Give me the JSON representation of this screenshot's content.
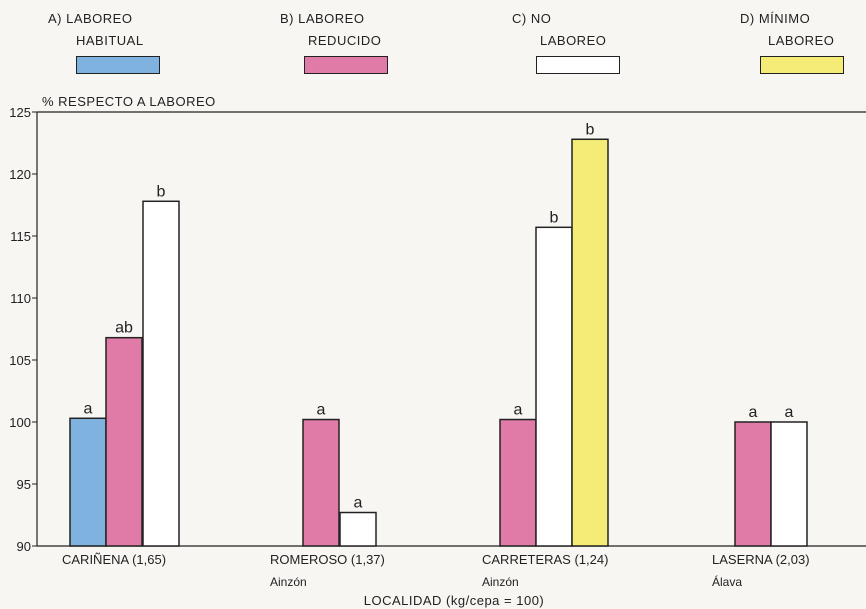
{
  "legend": {
    "a": {
      "line1": "A)  LABOREO",
      "line2": "HABITUAL",
      "color": "#7fb2de"
    },
    "b": {
      "line1": "B)  LABOREO",
      "line2": "REDUCIDO",
      "color": "#e07aa6"
    },
    "c": {
      "line1": "C)  NO",
      "line2": "LABOREO",
      "color": "#ffffff"
    },
    "d": {
      "line1": "D)  MÍNIMO",
      "line2": "LABOREO",
      "color": "#f5ec78"
    }
  },
  "chart_data": {
    "type": "bar",
    "ylabel": "% RESPECTO A LABOREO",
    "xlabel": "LOCALIDAD (kg/cepa = 100)",
    "ylim": [
      90,
      125
    ],
    "yticks": [
      90,
      95,
      100,
      105,
      110,
      115,
      120,
      125
    ],
    "categories": [
      {
        "label": "CARIÑENA (1,65)",
        "sublabel": ""
      },
      {
        "label": "ROMEROSO (1,37)",
        "sublabel": "Ainzón"
      },
      {
        "label": "CARRETERAS (1,24)",
        "sublabel": "Ainzón"
      },
      {
        "label": "LASERNA (2,03)",
        "sublabel": "Álava"
      }
    ],
    "bars": [
      {
        "category": 0,
        "series": "A",
        "value": 100.3,
        "sig": "a"
      },
      {
        "category": 0,
        "series": "B",
        "value": 106.8,
        "sig": "ab"
      },
      {
        "category": 0,
        "series": "C",
        "value": 117.8,
        "sig": "b"
      },
      {
        "category": 1,
        "series": "B",
        "value": 100.2,
        "sig": "a"
      },
      {
        "category": 1,
        "series": "C",
        "value": 92.7,
        "sig": "a"
      },
      {
        "category": 2,
        "series": "B",
        "value": 100.2,
        "sig": "a"
      },
      {
        "category": 2,
        "series": "C",
        "value": 115.7,
        "sig": "b"
      },
      {
        "category": 2,
        "series": "D",
        "value": 122.8,
        "sig": "b"
      },
      {
        "category": 3,
        "series": "B",
        "value": 100.0,
        "sig": "a"
      },
      {
        "category": 3,
        "series": "C",
        "value": 100.0,
        "sig": "a"
      }
    ],
    "series_colors": {
      "A": "#7fb2de",
      "B": "#e07aa6",
      "C": "#ffffff",
      "D": "#f5ec78"
    }
  }
}
